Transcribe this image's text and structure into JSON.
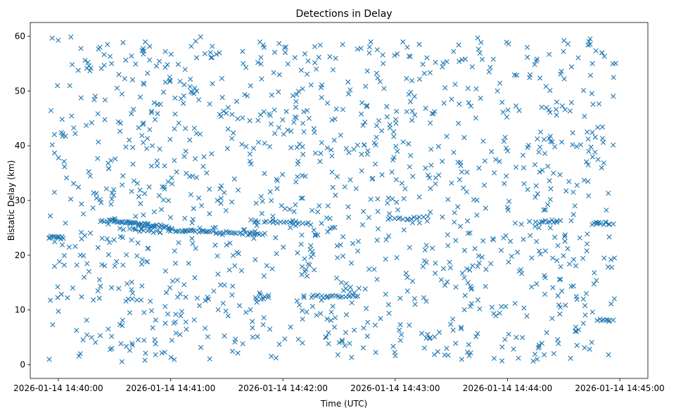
{
  "chart_data": {
    "type": "scatter",
    "title": "Detections in Delay",
    "xlabel": "Time (UTC)",
    "ylabel": "Bistatic Delay (km)",
    "marker": "x",
    "color": "#1f77b4",
    "xlim_seconds": [
      -15,
      315
    ],
    "ylim": [
      -2.5,
      62.5
    ],
    "x_tick_values_seconds": [
      0,
      60,
      120,
      180,
      240,
      300
    ],
    "x_tick_labels": [
      "2026-01-14 14:40:00",
      "2026-01-14 14:41:00",
      "2026-01-14 14:42:00",
      "2026-01-14 14:43:00",
      "2026-01-14 14:44:00",
      "2026-01-14 14:45:00"
    ],
    "y_ticks": [
      0,
      10,
      20,
      30,
      40,
      50,
      60
    ],
    "grid": false,
    "x_range_seconds": [
      -5,
      298
    ],
    "y_range_km": [
      0.5,
      60
    ],
    "background_point_count": 1250,
    "tracks": [
      {
        "x_start": -5,
        "x_end": 0,
        "y_start": 23.3,
        "y_end": 23.3,
        "count": 8
      },
      {
        "x_start": 22,
        "x_end": 30,
        "y_start": 26.3,
        "y_end": 26.3,
        "count": 8
      },
      {
        "x_start": 30,
        "x_end": 60,
        "y_start": 26.2,
        "y_end": 25.0,
        "count": 40
      },
      {
        "x_start": 38,
        "x_end": 55,
        "y_start": 24.7,
        "y_end": 24.3,
        "count": 14
      },
      {
        "x_start": 60,
        "x_end": 110,
        "y_start": 24.6,
        "y_end": 23.8,
        "count": 45
      },
      {
        "x_start": 110,
        "x_end": 135,
        "y_start": 26.2,
        "y_end": 25.8,
        "count": 18
      },
      {
        "x_start": 135,
        "x_end": 160,
        "y_start": 12.5,
        "y_end": 12.5,
        "count": 20
      },
      {
        "x_start": 176,
        "x_end": 195,
        "y_start": 26.8,
        "y_end": 26.8,
        "count": 12
      },
      {
        "x_start": 258,
        "x_end": 268,
        "y_start": 26.2,
        "y_end": 26.2,
        "count": 10
      },
      {
        "x_start": 285,
        "x_end": 296,
        "y_start": 25.8,
        "y_end": 25.8,
        "count": 12
      },
      {
        "x_start": 288,
        "x_end": 296,
        "y_start": 8.2,
        "y_end": 8.2,
        "count": 8
      },
      {
        "x_start": 105,
        "x_end": 112,
        "y_start": 12.2,
        "y_end": 12.2,
        "count": 6
      },
      {
        "x_start": 36,
        "x_end": 44,
        "y_start": 11.8,
        "y_end": 11.8,
        "count": 5
      }
    ]
  }
}
